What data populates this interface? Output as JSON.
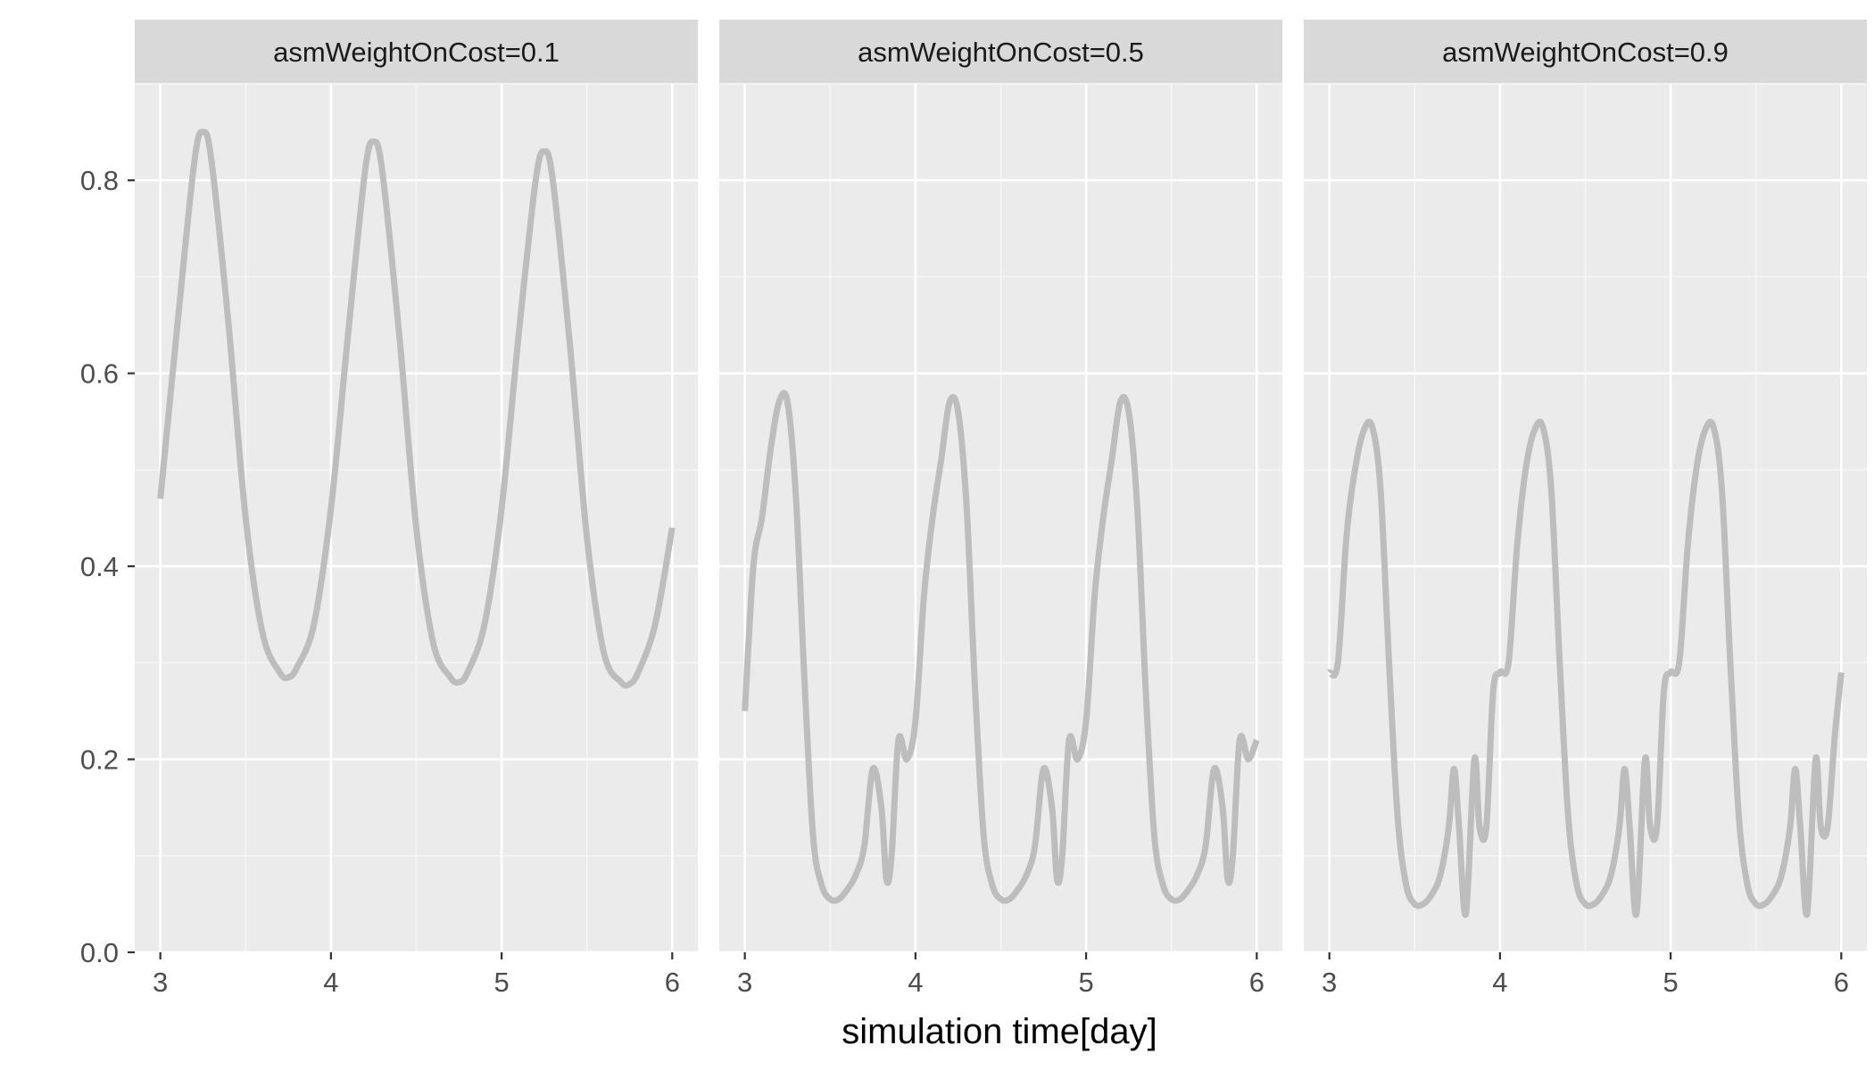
{
  "chart_data": {
    "type": "line",
    "facet_variable": "asmWeightOnCost",
    "xlabel": "simulation time[day]",
    "ylabel": "",
    "xlim": [
      2.85,
      6.15
    ],
    "ylim": [
      0.0,
      0.9
    ],
    "x_ticks": [
      3,
      4,
      5,
      6
    ],
    "y_ticks": [
      0.0,
      0.2,
      0.4,
      0.6,
      0.8
    ],
    "x_tick_labels": [
      "3",
      "4",
      "5",
      "6"
    ],
    "y_tick_labels": [
      "0.0",
      "0.2",
      "0.4",
      "0.6",
      "0.8"
    ],
    "grid": true,
    "line_color": "#bdbdbd",
    "panel_background": "#ebebeb",
    "strip_background": "#d9d9d9",
    "panels": [
      {
        "label": "asmWeightOnCost=0.1",
        "x": [
          3.0,
          3.1,
          3.2,
          3.25,
          3.3,
          3.4,
          3.5,
          3.6,
          3.7,
          3.75,
          3.8,
          3.9,
          4.0,
          4.1,
          4.2,
          4.25,
          4.3,
          4.4,
          4.5,
          4.6,
          4.7,
          4.75,
          4.8,
          4.9,
          5.0,
          5.1,
          5.2,
          5.25,
          5.3,
          5.4,
          5.5,
          5.6,
          5.7,
          5.75,
          5.8,
          5.9,
          6.0
        ],
        "y": [
          0.47,
          0.65,
          0.82,
          0.85,
          0.82,
          0.65,
          0.45,
          0.33,
          0.29,
          0.285,
          0.295,
          0.34,
          0.46,
          0.64,
          0.81,
          0.84,
          0.81,
          0.64,
          0.44,
          0.32,
          0.285,
          0.28,
          0.29,
          0.34,
          0.46,
          0.64,
          0.8,
          0.83,
          0.8,
          0.63,
          0.43,
          0.31,
          0.28,
          0.278,
          0.29,
          0.34,
          0.44
        ]
      },
      {
        "label": "asmWeightOnCost=0.5",
        "x": [
          3.0,
          3.05,
          3.1,
          3.15,
          3.2,
          3.25,
          3.3,
          3.35,
          3.4,
          3.45,
          3.5,
          3.55,
          3.6,
          3.65,
          3.7,
          3.75,
          3.8,
          3.83,
          3.86,
          3.9,
          3.95,
          4.0,
          4.05,
          4.1,
          4.15,
          4.2,
          4.25,
          4.3,
          4.35,
          4.4,
          4.45,
          4.5,
          4.55,
          4.6,
          4.65,
          4.7,
          4.75,
          4.8,
          4.83,
          4.86,
          4.9,
          4.95,
          5.0,
          5.05,
          5.1,
          5.15,
          5.2,
          5.25,
          5.3,
          5.35,
          5.4,
          5.45,
          5.5,
          5.55,
          5.6,
          5.65,
          5.7,
          5.75,
          5.8,
          5.83,
          5.86,
          5.9,
          5.95,
          6.0
        ],
        "y": [
          0.25,
          0.4,
          0.45,
          0.52,
          0.57,
          0.57,
          0.47,
          0.28,
          0.12,
          0.07,
          0.055,
          0.055,
          0.065,
          0.08,
          0.11,
          0.19,
          0.15,
          0.075,
          0.1,
          0.22,
          0.2,
          0.24,
          0.37,
          0.45,
          0.51,
          0.57,
          0.56,
          0.46,
          0.27,
          0.12,
          0.07,
          0.055,
          0.055,
          0.065,
          0.08,
          0.11,
          0.19,
          0.15,
          0.075,
          0.1,
          0.22,
          0.2,
          0.24,
          0.37,
          0.45,
          0.51,
          0.57,
          0.56,
          0.46,
          0.27,
          0.12,
          0.07,
          0.055,
          0.055,
          0.065,
          0.08,
          0.11,
          0.19,
          0.15,
          0.075,
          0.1,
          0.22,
          0.2,
          0.22
        ]
      },
      {
        "label": "asmWeightOnCost=0.9",
        "x": [
          3.0,
          3.05,
          3.1,
          3.15,
          3.2,
          3.25,
          3.3,
          3.35,
          3.4,
          3.45,
          3.5,
          3.55,
          3.6,
          3.65,
          3.7,
          3.73,
          3.76,
          3.8,
          3.85,
          3.88,
          3.92,
          3.96,
          4.0,
          4.05,
          4.1,
          4.15,
          4.2,
          4.25,
          4.3,
          4.35,
          4.4,
          4.45,
          4.5,
          4.55,
          4.6,
          4.65,
          4.7,
          4.73,
          4.76,
          4.8,
          4.85,
          4.88,
          4.92,
          4.96,
          5.0,
          5.05,
          5.1,
          5.15,
          5.2,
          5.25,
          5.3,
          5.35,
          5.4,
          5.45,
          5.5,
          5.55,
          5.6,
          5.65,
          5.7,
          5.73,
          5.76,
          5.8,
          5.85,
          5.88,
          5.92,
          5.96,
          6.0
        ],
        "y": [
          0.29,
          0.3,
          0.43,
          0.5,
          0.54,
          0.545,
          0.48,
          0.3,
          0.14,
          0.07,
          0.05,
          0.05,
          0.06,
          0.08,
          0.13,
          0.19,
          0.13,
          0.04,
          0.2,
          0.13,
          0.13,
          0.27,
          0.29,
          0.3,
          0.42,
          0.5,
          0.54,
          0.545,
          0.48,
          0.3,
          0.14,
          0.07,
          0.05,
          0.05,
          0.06,
          0.08,
          0.13,
          0.19,
          0.13,
          0.04,
          0.2,
          0.13,
          0.13,
          0.27,
          0.29,
          0.3,
          0.42,
          0.5,
          0.54,
          0.545,
          0.48,
          0.3,
          0.14,
          0.07,
          0.05,
          0.05,
          0.06,
          0.08,
          0.13,
          0.19,
          0.13,
          0.04,
          0.2,
          0.13,
          0.13,
          0.22,
          0.29
        ]
      }
    ]
  }
}
